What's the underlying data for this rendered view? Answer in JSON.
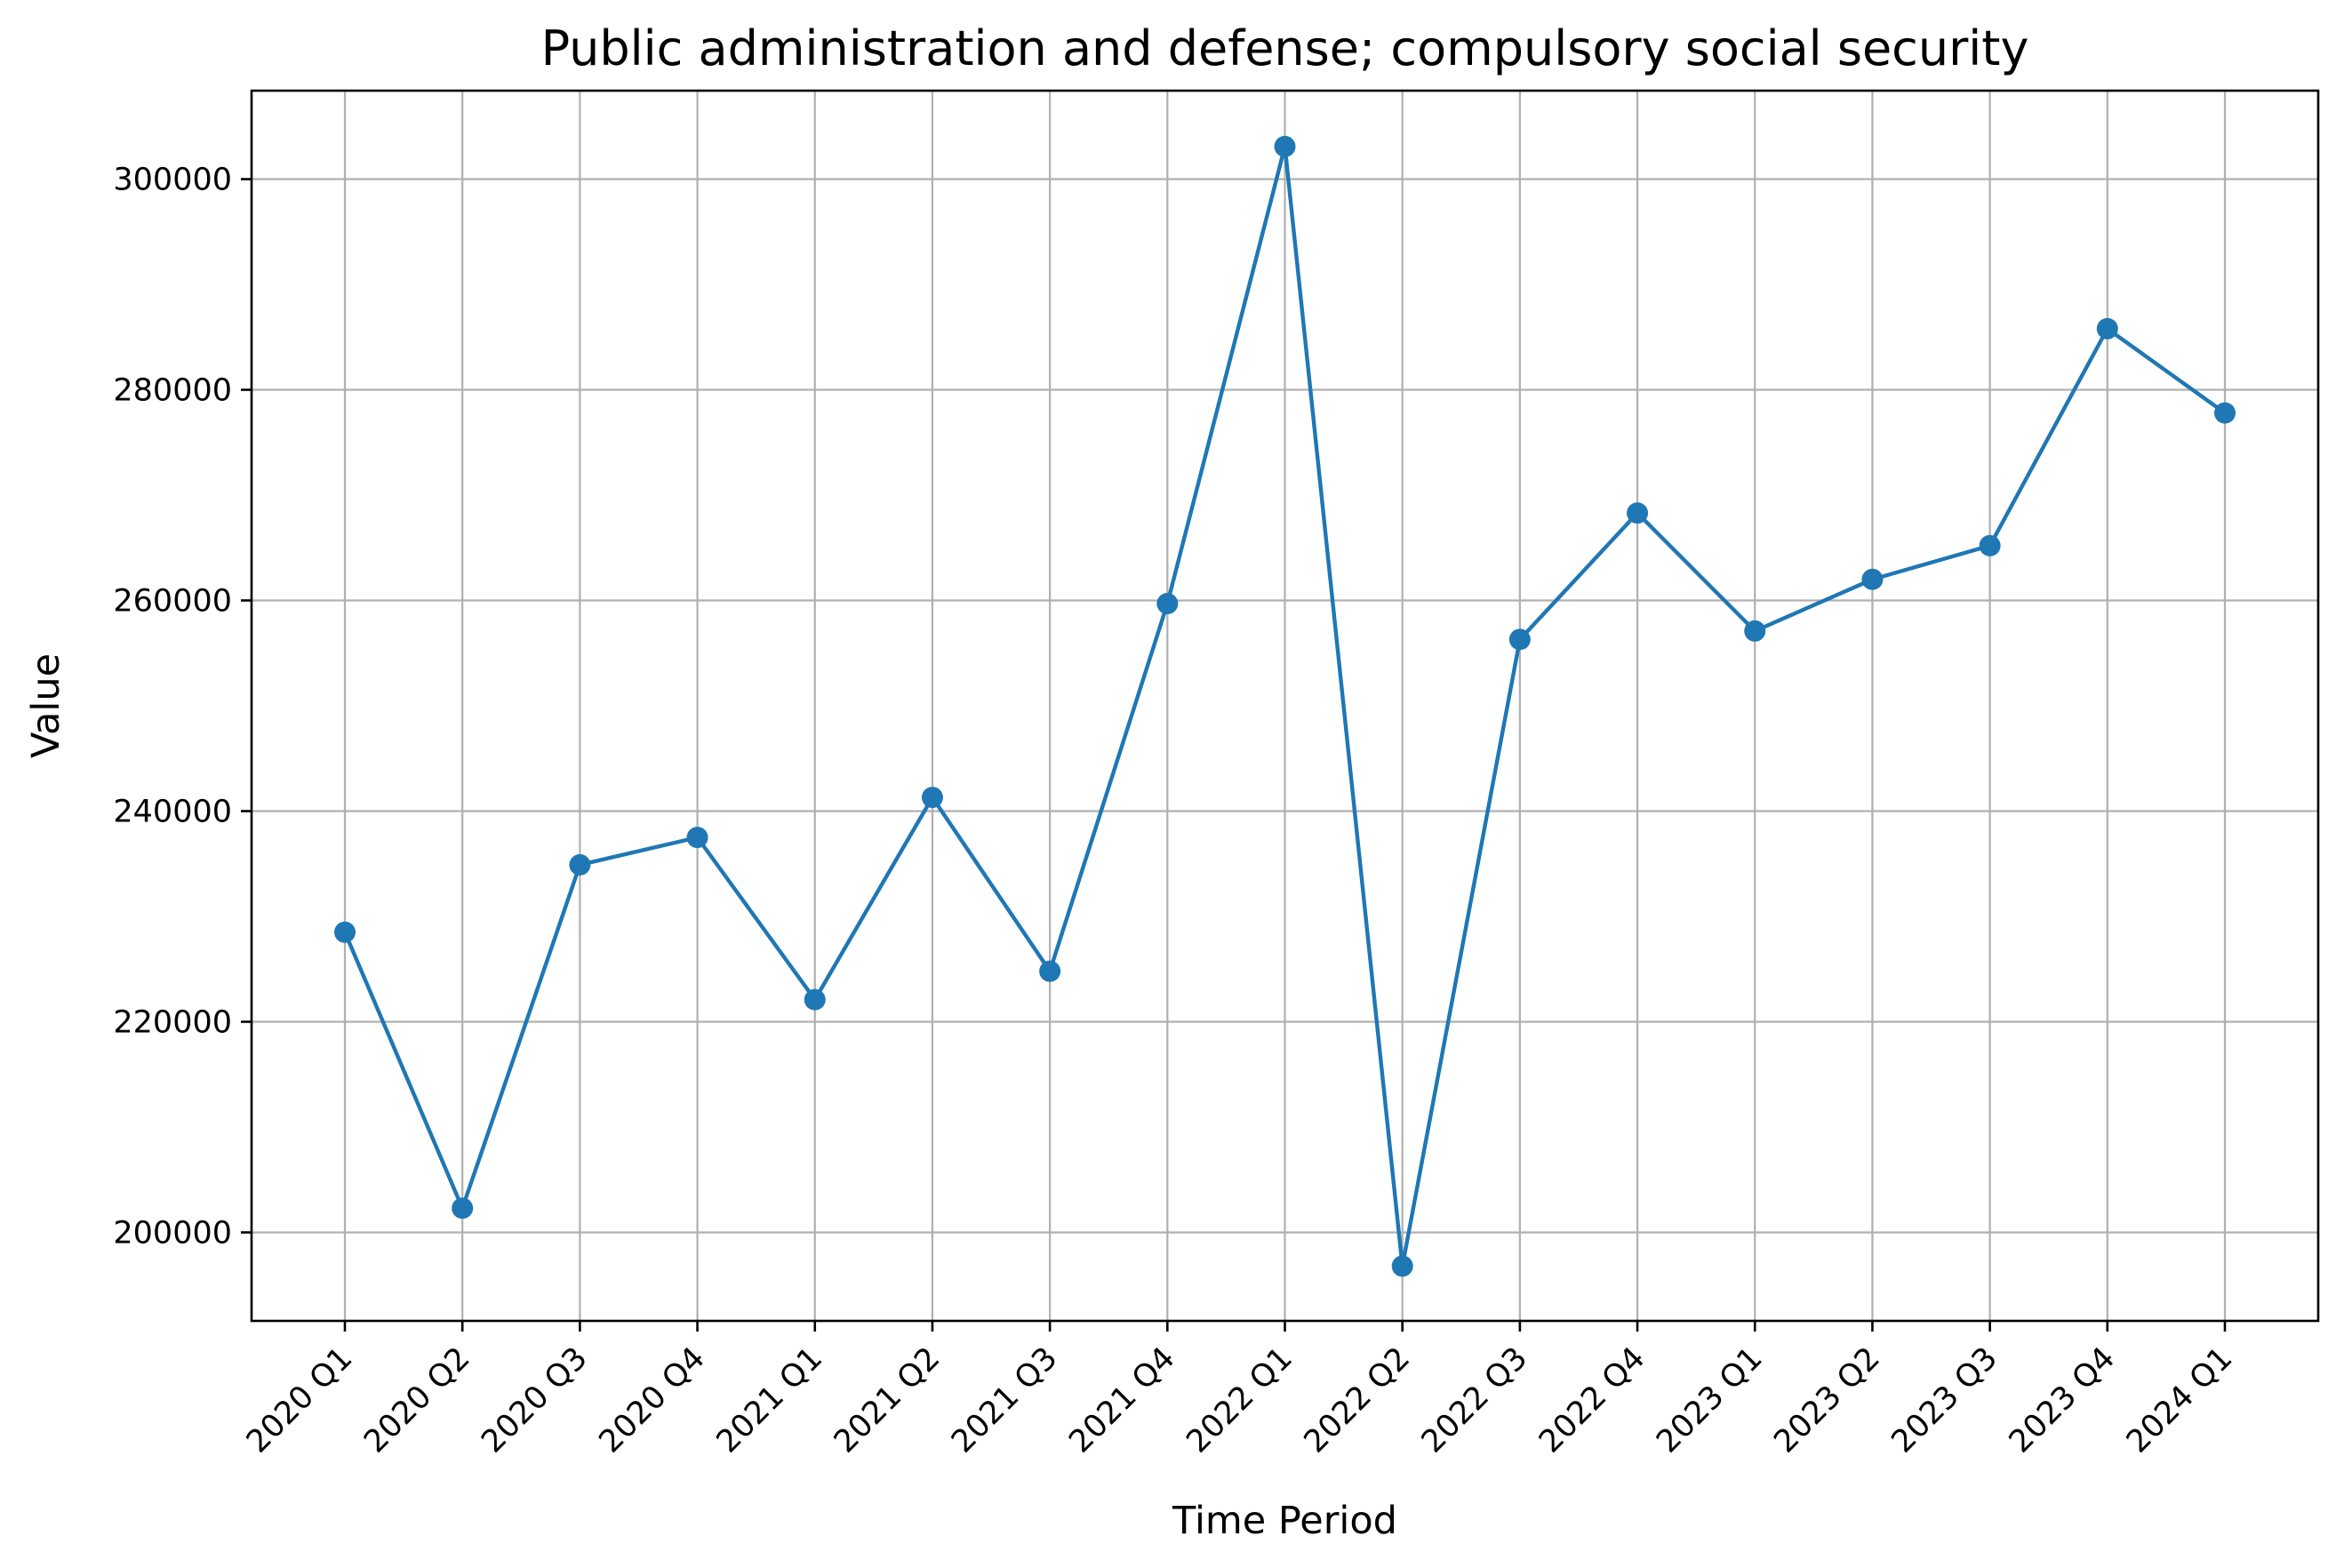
{
  "chart_data": {
    "type": "line",
    "title": "Public administration and defense; compulsory social security",
    "xlabel": "Time Period",
    "ylabel": "Value",
    "categories": [
      "2020 Q1",
      "2020 Q2",
      "2020 Q3",
      "2020 Q4",
      "2021 Q1",
      "2021 Q2",
      "2021 Q3",
      "2021 Q4",
      "2022 Q1",
      "2022 Q2",
      "2022 Q3",
      "2022 Q4",
      "2023 Q1",
      "2023 Q2",
      "2023 Q3",
      "2023 Q4",
      "2024 Q1"
    ],
    "series": [
      {
        "values": [
          228500,
          202300,
          234900,
          237500,
          222100,
          241300,
          224800,
          259700,
          303100,
          196800,
          256300,
          268300,
          257100,
          262000,
          265200,
          285800,
          277800
        ],
        "color": "#1f77b4",
        "marker": "circle"
      }
    ],
    "ylim": [
      191600,
      308400
    ],
    "yticks": [
      200000,
      220000,
      240000,
      260000,
      280000,
      300000
    ],
    "grid": true,
    "legend": "none"
  }
}
